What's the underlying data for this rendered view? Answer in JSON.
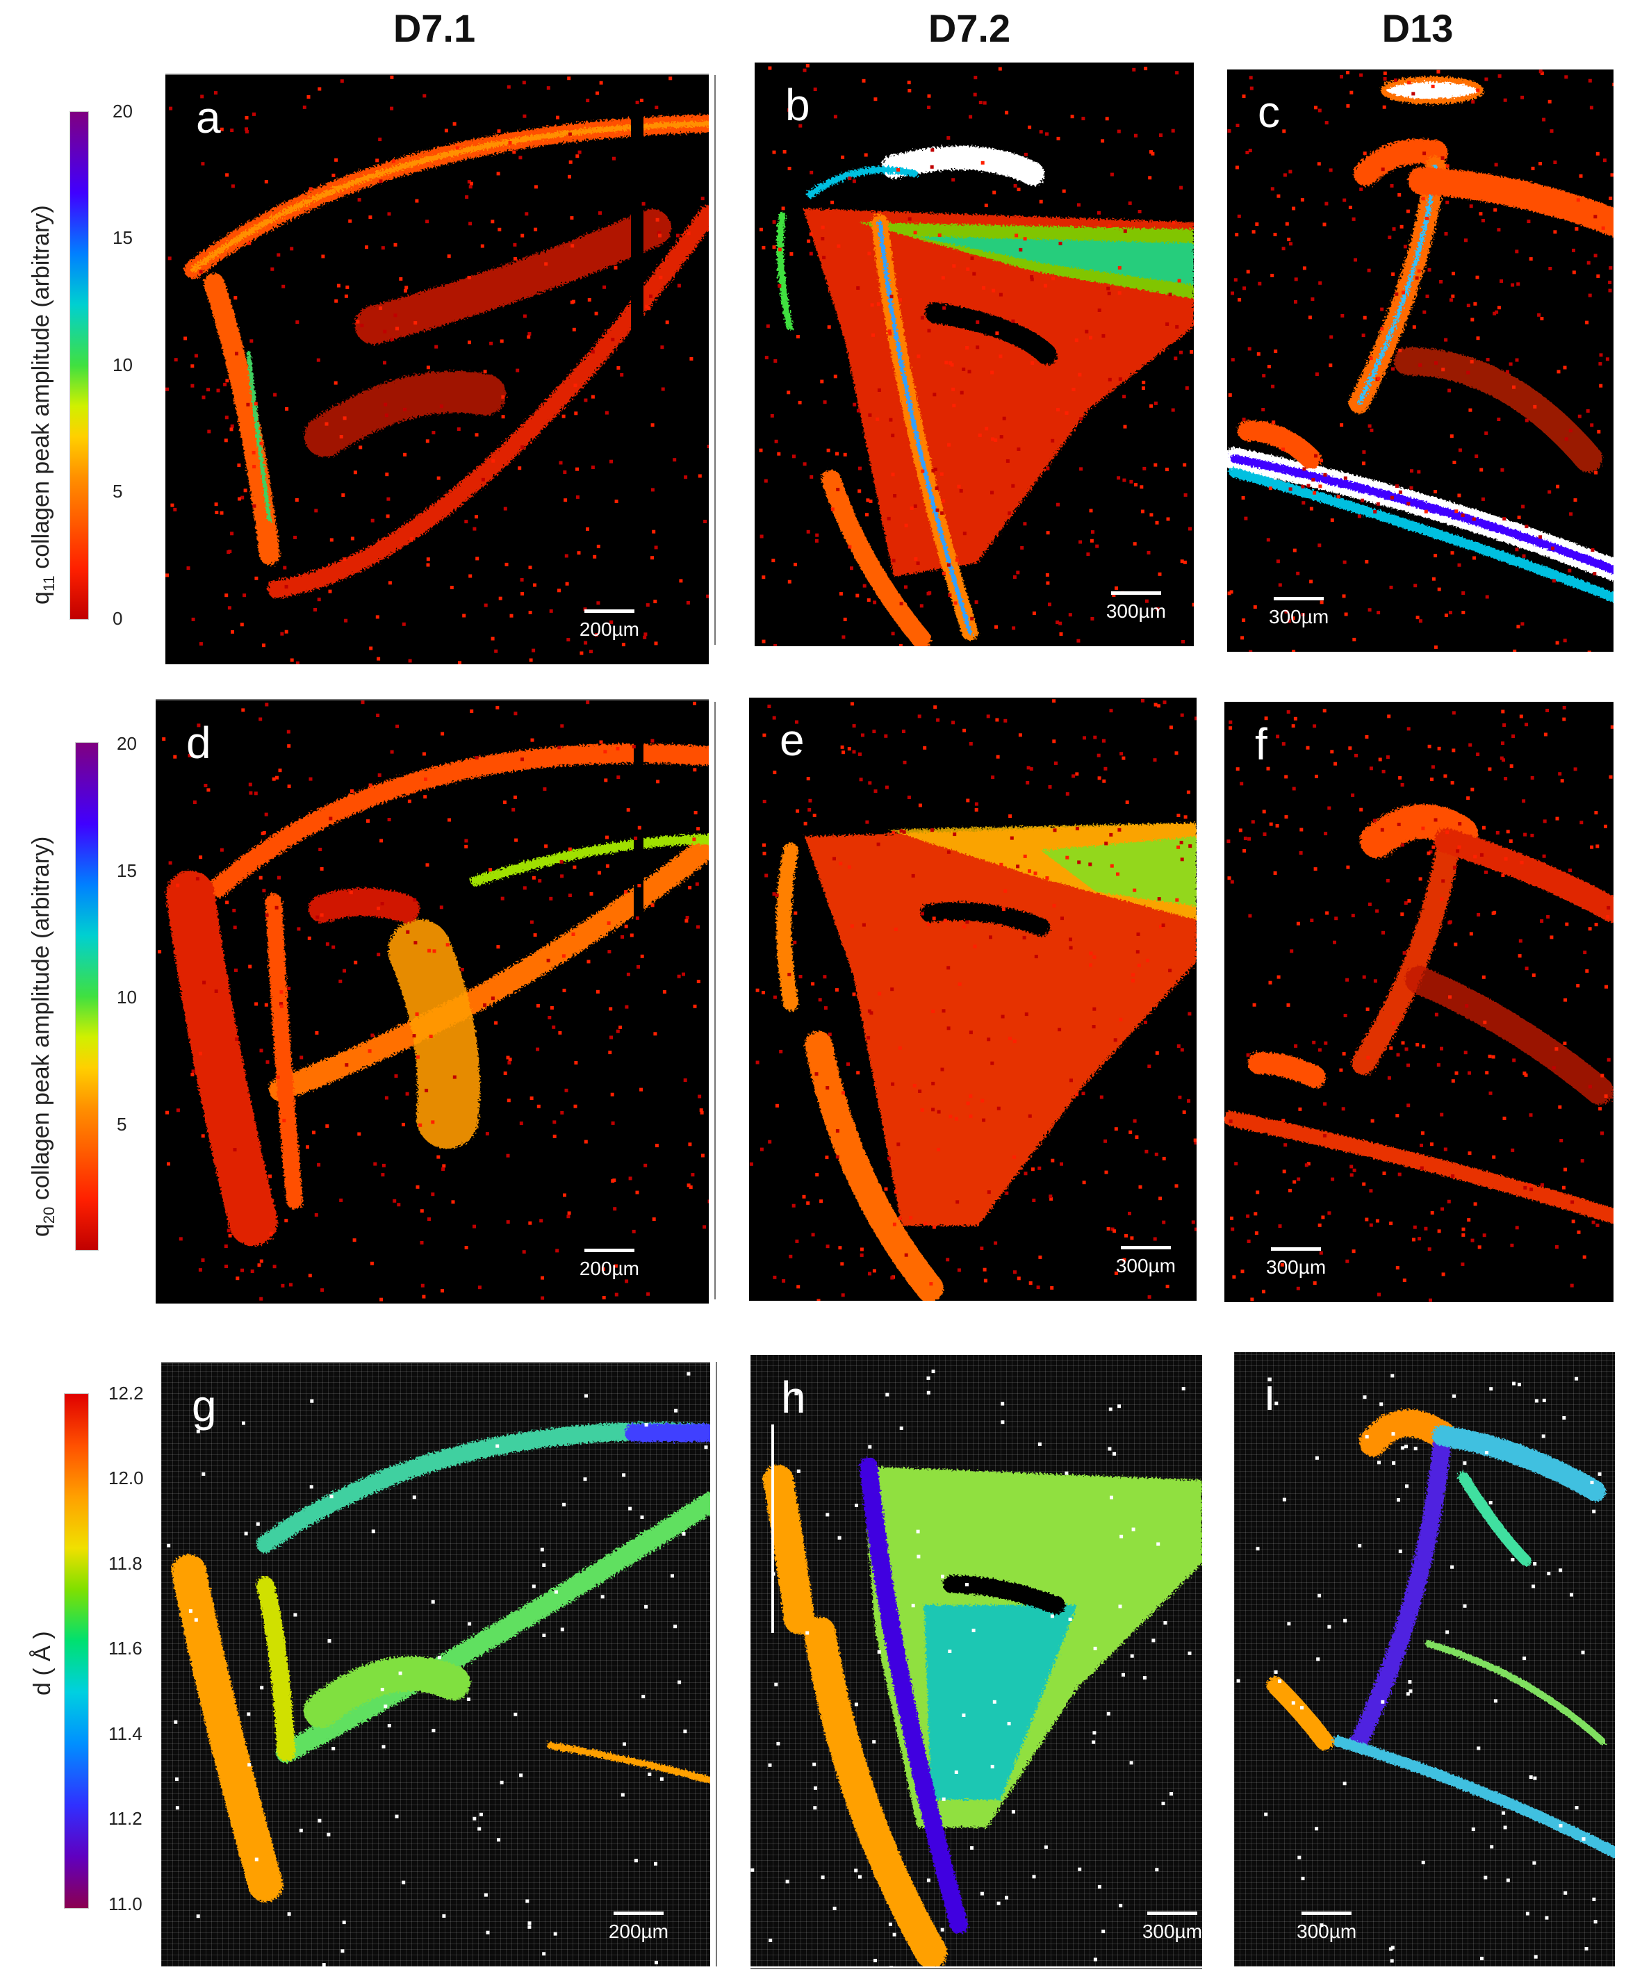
{
  "columns": [
    "D7.1",
    "D7.2",
    "D13"
  ],
  "colorbars": [
    {
      "title_base": "q",
      "title_sub": "11",
      "title_rest": " collagen peak amplitude (arbitrary)",
      "ticks": [
        "20",
        "15",
        "10",
        "5",
        "0"
      ]
    },
    {
      "title_base": "q",
      "title_sub": "20",
      "title_rest": " collagen peak amplitude (arbitrary)",
      "ticks": [
        "20",
        "15",
        "10",
        "5"
      ]
    },
    {
      "title_base": "d ( Å )",
      "title_sub": "",
      "title_rest": "",
      "ticks": [
        "12.2",
        "12.0",
        "11.8",
        "11.6",
        "11.4",
        "11.2",
        "11.0"
      ]
    }
  ],
  "panels": [
    {
      "letter": "a",
      "scale": "200µm"
    },
    {
      "letter": "b",
      "scale": "300µm"
    },
    {
      "letter": "c",
      "scale": "300µm"
    },
    {
      "letter": "d",
      "scale": "200µm"
    },
    {
      "letter": "e",
      "scale": "300µm"
    },
    {
      "letter": "f",
      "scale": "300µm"
    },
    {
      "letter": "g",
      "scale": "200µm"
    },
    {
      "letter": "h",
      "scale": "300µm"
    },
    {
      "letter": "i",
      "scale": "300µm"
    }
  ],
  "colors": {
    "amplitude_scale": [
      "#c00000",
      "#ff2000",
      "#ff6000",
      "#ff9000",
      "#ffd000",
      "#d0f000",
      "#40e040",
      "#00d0d0",
      "#0080ff",
      "#4000ff",
      "#800080"
    ],
    "d_scale": [
      "#8b0050",
      "#6000c0",
      "#3030ff",
      "#0090ff",
      "#00d0e0",
      "#00e070",
      "#80e000",
      "#f0e000",
      "#ffa000",
      "#ff5000",
      "#e00000"
    ]
  }
}
